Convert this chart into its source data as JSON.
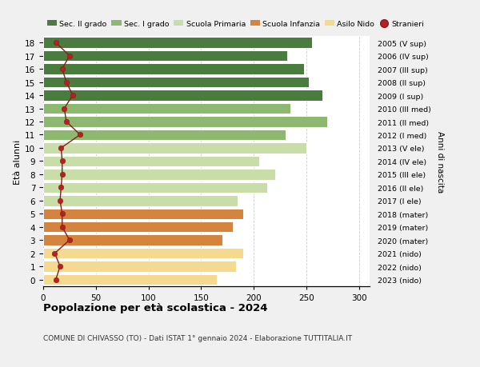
{
  "ages": [
    0,
    1,
    2,
    3,
    4,
    5,
    6,
    7,
    8,
    9,
    10,
    11,
    12,
    13,
    14,
    15,
    16,
    17,
    18
  ],
  "right_labels": [
    "2023 (nido)",
    "2022 (nido)",
    "2021 (nido)",
    "2020 (mater)",
    "2019 (mater)",
    "2018 (mater)",
    "2017 (I ele)",
    "2016 (II ele)",
    "2015 (III ele)",
    "2014 (IV ele)",
    "2013 (V ele)",
    "2012 (I med)",
    "2011 (II med)",
    "2010 (III med)",
    "2009 (I sup)",
    "2008 (II sup)",
    "2007 (III sup)",
    "2006 (IV sup)",
    "2005 (V sup)"
  ],
  "bar_values": [
    165,
    183,
    190,
    170,
    180,
    190,
    185,
    213,
    220,
    205,
    250,
    230,
    270,
    235,
    265,
    252,
    248,
    232,
    255
  ],
  "stranieri_values": [
    12,
    16,
    11,
    25,
    18,
    18,
    16,
    17,
    18,
    18,
    17,
    35,
    22,
    20,
    28,
    22,
    18,
    25,
    12
  ],
  "bar_colors": [
    "#f5d98e",
    "#f5d98e",
    "#f5d98e",
    "#d4843e",
    "#d4843e",
    "#d4843e",
    "#c8dda8",
    "#c8dda8",
    "#c8dda8",
    "#c8dda8",
    "#c8dda8",
    "#8db870",
    "#8db870",
    "#8db870",
    "#4a7c40",
    "#4a7c40",
    "#4a7c40",
    "#4a7c40",
    "#4a7c40"
  ],
  "legend_colors": [
    "#4a7c40",
    "#8db870",
    "#c8dda8",
    "#d4843e",
    "#f5d98e",
    "#b22222"
  ],
  "legend_labels": [
    "Sec. II grado",
    "Sec. I grado",
    "Scuola Primaria",
    "Scuola Infanzia",
    "Asilo Nido",
    "Stranieri"
  ],
  "xlabel_values": [
    0,
    50,
    100,
    150,
    200,
    250,
    300
  ],
  "xlim": [
    0,
    310
  ],
  "title": "Popolazione per età scolastica - 2024",
  "subtitle": "COMUNE DI CHIVASSO (TO) - Dati ISTAT 1° gennaio 2024 - Elaborazione TUTTITALIA.IT",
  "ylabel": "Età alunni",
  "right_ylabel": "Anni di nascita",
  "background_color": "#f0f0f0",
  "bar_background": "#ffffff",
  "grid_color": "#cccccc"
}
